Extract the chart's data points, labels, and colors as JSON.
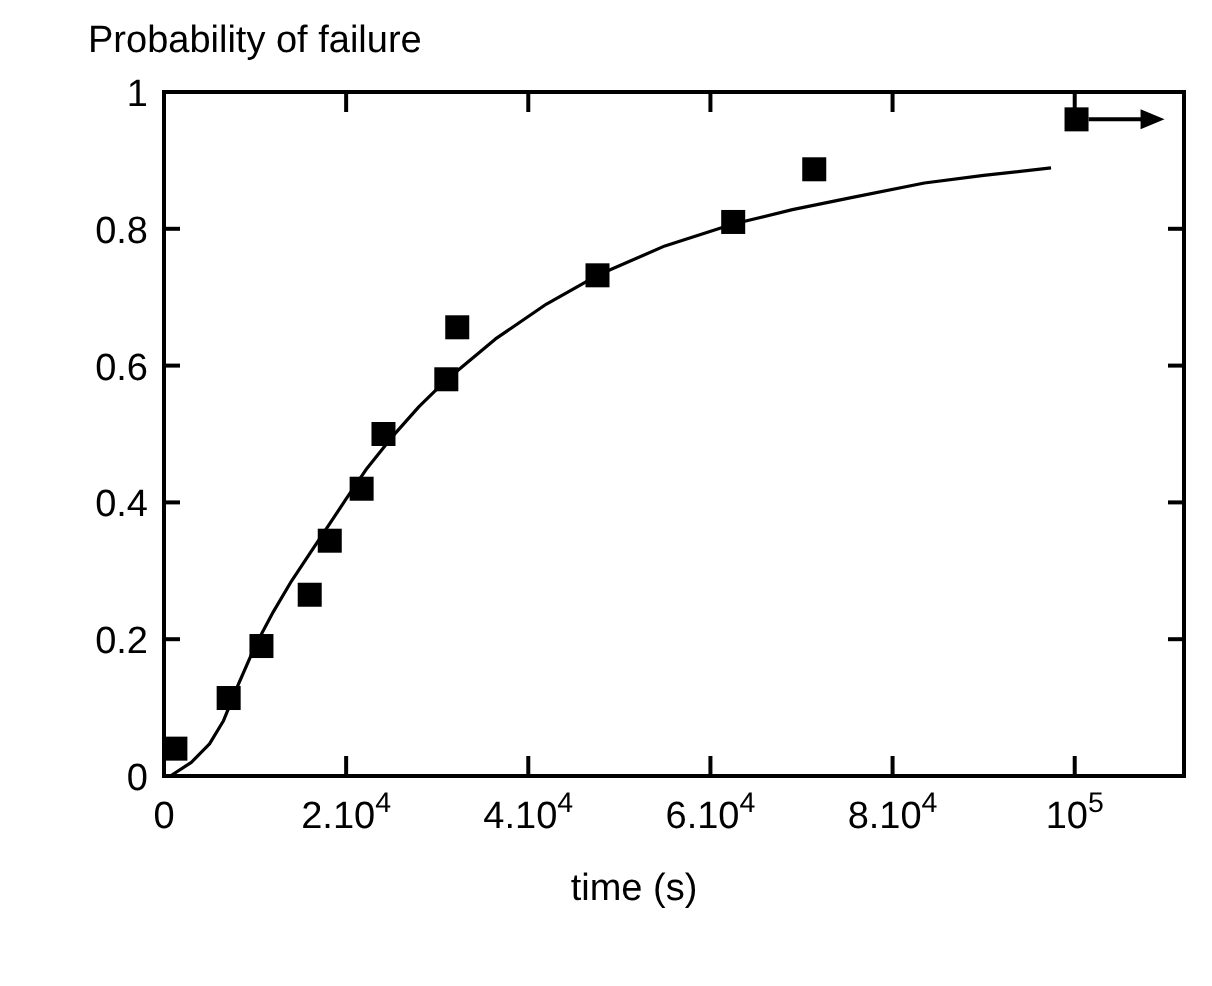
{
  "chart_data": {
    "type": "scatter",
    "ylabel": "Probability of failure",
    "xlabel": "time (s)",
    "xlim": [
      0,
      112000
    ],
    "ylim": [
      0,
      1
    ],
    "xticks": [
      0,
      {
        "value": 20000,
        "label": "2.10$^{4}$"
      },
      {
        "value": 40000,
        "label": "4.10$^{4}$"
      },
      {
        "value": 60000,
        "label": "6.10$^{4}$"
      },
      {
        "value": 80000,
        "label": "8.10$^{4}$"
      },
      {
        "value": 100000,
        "label": "10$^{5}$"
      }
    ],
    "yticks": [
      0,
      0.2,
      0.4,
      0.6,
      0.8,
      1
    ],
    "grid": false,
    "series": [
      {
        "marker": "square",
        "color": "#000000",
        "x": [
          1250,
          7100,
          10700,
          16000,
          18200,
          21700,
          24100,
          31000,
          32200,
          47600,
          62500,
          71400,
          100200
        ],
        "values": [
          0.04,
          0.114,
          0.19,
          0.265,
          0.344,
          0.42,
          0.5,
          0.58,
          0.656,
          0.732,
          0.81,
          0.887,
          0.96
        ]
      },
      {
        "type": "line",
        "marker": "none",
        "line_style": "solid",
        "color": "#000000",
        "x": [
          700,
          3000,
          5000,
          6500,
          8200,
          10000,
          12000,
          14000,
          16000,
          18000,
          20000,
          22300,
          25000,
          28000,
          31000,
          36400,
          42000,
          47600,
          55000,
          62500,
          69000,
          75600,
          83500,
          90000,
          97400
        ],
        "values": [
          0,
          0.02,
          0.047,
          0.08,
          0.135,
          0.19,
          0.24,
          0.285,
          0.325,
          0.365,
          0.405,
          0.45,
          0.495,
          0.54,
          0.579,
          0.639,
          0.69,
          0.732,
          0.775,
          0.807,
          0.828,
          0.846,
          0.867,
          0.878,
          0.889
        ]
      }
    ]
  }
}
